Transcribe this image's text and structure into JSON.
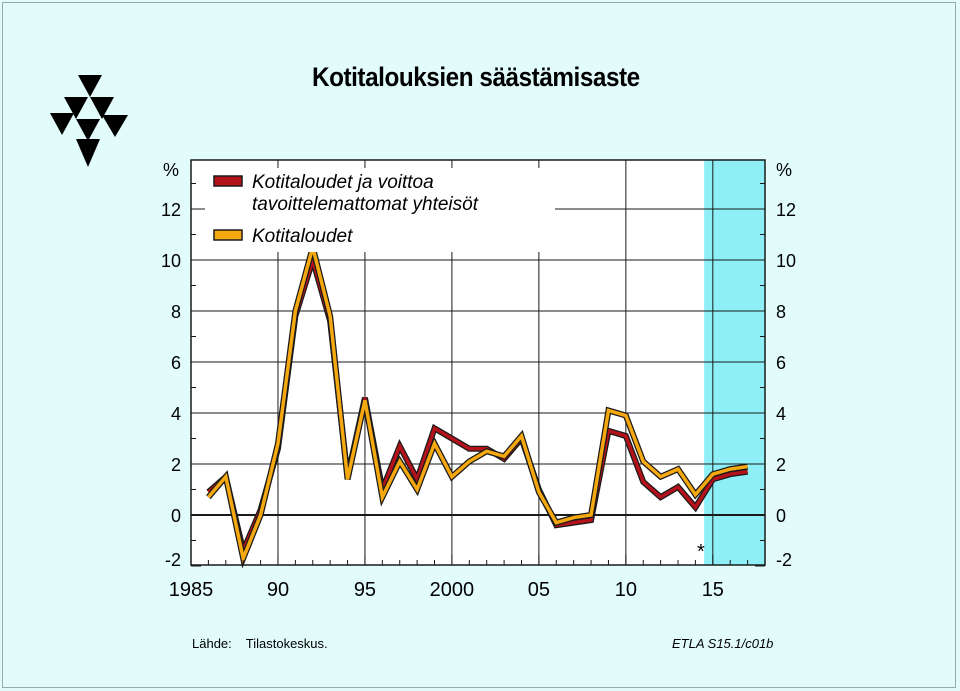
{
  "title": "Kotitalouksien säästämisaste",
  "source": {
    "label": "Lähde:",
    "value": "Tilastokeskus."
  },
  "code": "ETLA S15.1/c01b",
  "forecast_marker": "*",
  "colors": {
    "background": "#e2fcfc",
    "plot": "#ffffff",
    "forecast_band": "#8ef0f6",
    "series1": "#b3121a",
    "series2": "#f5a80f",
    "outline": "#1a1a1a"
  },
  "chart_data": {
    "type": "line",
    "title": "Kotitalouksien säästämisaste",
    "ylabel_left": "%",
    "ylabel_right": "%",
    "x": [
      1986,
      1987,
      1988,
      1989,
      1990,
      1991,
      1992,
      1993,
      1994,
      1995,
      1996,
      1997,
      1998,
      1999,
      2000,
      2001,
      2002,
      2003,
      2004,
      2005,
      2006,
      2007,
      2008,
      2009,
      2010,
      2011,
      2012,
      2013,
      2014,
      2015,
      2016,
      2017
    ],
    "xlim": [
      1985,
      2018
    ],
    "ylim": [
      -2,
      14
    ],
    "x_ticks": [
      {
        "value": 1985,
        "label": "1985"
      },
      {
        "value": 1990,
        "label": "90"
      },
      {
        "value": 1995,
        "label": "95"
      },
      {
        "value": 2000,
        "label": "2000"
      },
      {
        "value": 2005,
        "label": "05"
      },
      {
        "value": 2010,
        "label": "10"
      },
      {
        "value": 2015,
        "label": "15"
      }
    ],
    "y_ticks": [
      {
        "value": 12,
        "label": "12"
      },
      {
        "value": 10,
        "label": "10"
      },
      {
        "value": 8,
        "label": "8"
      },
      {
        "value": 6,
        "label": "6"
      },
      {
        "value": 4,
        "label": "4"
      },
      {
        "value": 2,
        "label": "2"
      },
      {
        "value": 0,
        "label": "0"
      },
      {
        "value": -2,
        "label": "-2"
      }
    ],
    "forecast_from": 2014.5,
    "grid": true,
    "legend_position": "top-left",
    "series": [
      {
        "name": "Kotitaloudet ja voittoa tavoittelemattomat yhteisöt",
        "name_lines": [
          "Kotitaloudet ja voittoa",
          "tavoittelemattomat yhteisöt"
        ],
        "values": [
          0.9,
          1.5,
          -1.4,
          0.2,
          2.6,
          7.8,
          10.0,
          7.6,
          1.5,
          4.6,
          1.0,
          2.7,
          1.4,
          3.4,
          3.0,
          2.6,
          2.6,
          2.2,
          3.0,
          1.0,
          -0.4,
          -0.3,
          -0.2,
          3.3,
          3.1,
          1.3,
          0.7,
          1.1,
          0.3,
          1.4,
          1.6,
          1.7
        ]
      },
      {
        "name": "Kotitaloudet",
        "name_lines": [
          "Kotitaloudet"
        ],
        "values": [
          0.7,
          1.5,
          -1.7,
          0.0,
          2.8,
          8.0,
          10.5,
          7.8,
          1.4,
          4.5,
          0.7,
          2.1,
          1.0,
          2.8,
          1.5,
          2.1,
          2.5,
          2.3,
          3.1,
          0.9,
          -0.3,
          -0.1,
          0.0,
          4.1,
          3.9,
          2.1,
          1.5,
          1.8,
          0.8,
          1.6,
          1.8,
          1.9
        ]
      }
    ]
  }
}
